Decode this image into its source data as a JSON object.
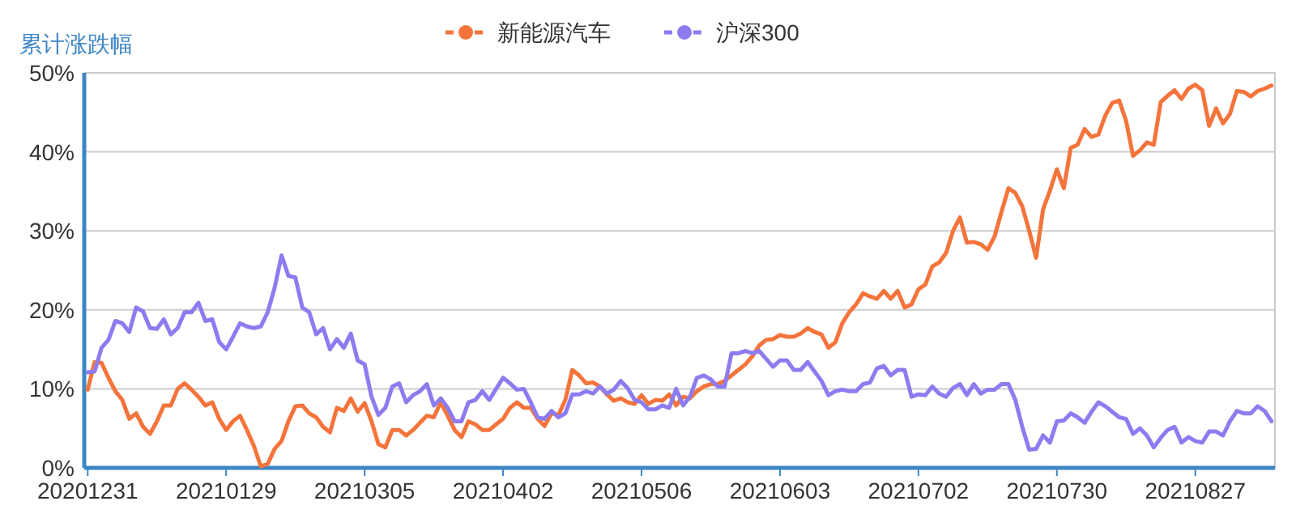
{
  "chart_data": {
    "type": "line",
    "ylabel": "累计涨跌幅",
    "legend": "top",
    "grid": "y",
    "ylim": [
      0,
      50
    ],
    "yticks": [
      {
        "value": 0,
        "label": "0%"
      },
      {
        "value": 10,
        "label": "10%"
      },
      {
        "value": 20,
        "label": "20%"
      },
      {
        "value": 30,
        "label": "30%"
      },
      {
        "value": 40,
        "label": "40%"
      },
      {
        "value": 50,
        "label": "50%"
      }
    ],
    "categories": [
      "20201231",
      null,
      null,
      null,
      null,
      null,
      null,
      null,
      null,
      null,
      null,
      null,
      null,
      null,
      null,
      null,
      null,
      null,
      null,
      null,
      "20210129",
      null,
      null,
      null,
      null,
      null,
      null,
      null,
      null,
      null,
      null,
      null,
      null,
      null,
      null,
      null,
      null,
      null,
      null,
      null,
      "20210305",
      null,
      null,
      null,
      null,
      null,
      null,
      null,
      null,
      null,
      null,
      null,
      null,
      null,
      null,
      null,
      null,
      null,
      null,
      null,
      "20210402",
      null,
      null,
      null,
      null,
      null,
      null,
      null,
      null,
      null,
      null,
      null,
      null,
      null,
      null,
      null,
      null,
      null,
      null,
      null,
      "20210506",
      null,
      null,
      null,
      null,
      null,
      null,
      null,
      null,
      null,
      null,
      null,
      null,
      null,
      null,
      null,
      null,
      null,
      null,
      null,
      "20210603",
      null,
      null,
      null,
      null,
      null,
      null,
      null,
      null,
      null,
      null,
      null,
      null,
      null,
      null,
      null,
      null,
      null,
      null,
      null,
      "20210702",
      null,
      null,
      null,
      null,
      null,
      null,
      null,
      null,
      null,
      null,
      null,
      null,
      null,
      null,
      null,
      null,
      null,
      null,
      null,
      "20210730",
      null,
      null,
      null,
      null,
      null,
      null,
      null,
      null,
      null,
      null,
      null,
      null,
      null,
      null,
      null,
      null,
      null,
      null,
      null,
      "20210827",
      null,
      null,
      null,
      null,
      null,
      null,
      null,
      null,
      null,
      null,
      null
    ],
    "series": [
      {
        "name": "新能源汽车",
        "color": "#f4743b",
        "values": [
          9.9,
          13.4,
          13.3,
          11.4,
          9.7,
          8.6,
          6.2,
          6.9,
          5.2,
          4.3,
          5.9,
          7.9,
          7.9,
          10,
          10.7,
          9.9,
          9,
          7.9,
          8.3,
          6.2,
          4.8,
          5.9,
          6.6,
          4.8,
          2.8,
          0.2,
          0.5,
          2.4,
          3.4,
          5.9,
          7.8,
          7.9,
          6.9,
          6.4,
          5.2,
          4.5,
          7.6,
          7.2,
          8.8,
          7.1,
          8.2,
          5.9,
          3,
          2.6,
          4.8,
          4.8,
          4.1,
          4.8,
          5.7,
          6.6,
          6.4,
          8.3,
          6.6,
          4.8,
          3.9,
          5.9,
          5.5,
          4.8,
          4.8,
          5.5,
          6.2,
          7.6,
          8.3,
          7.6,
          7.6,
          6.2,
          5.3,
          6.9,
          6.7,
          8.6,
          12.4,
          11.7,
          10.7,
          10.8,
          10.3,
          9.3,
          8.5,
          8.8,
          8.3,
          8.1,
          9.2,
          8.1,
          8.6,
          8.5,
          9.3,
          7.9,
          9,
          8.8,
          9.7,
          10.3,
          10.6,
          10.6,
          11,
          11.7,
          12.4,
          13.1,
          14.1,
          15.5,
          16.2,
          16.3,
          16.8,
          16.6,
          16.6,
          17,
          17.7,
          17.2,
          16.9,
          15.2,
          15.9,
          18.3,
          19.7,
          20.7,
          22.1,
          21.7,
          21.4,
          22.4,
          21.4,
          22.4,
          20.3,
          20.7,
          22.6,
          23.2,
          25.5,
          26,
          27.2,
          30,
          31.7,
          28.5,
          28.6,
          28.3,
          27.6,
          29.3,
          32.4,
          35.4,
          34.8,
          33.1,
          30,
          26.6,
          32.7,
          35.1,
          37.8,
          35.4,
          40.5,
          40.9,
          42.9,
          41.9,
          42.2,
          44.6,
          46.2,
          46.5,
          43.9,
          39.5,
          40.2,
          41.2,
          40.9,
          46.3,
          47.1,
          47.8,
          46.7,
          48,
          48.5,
          47.8,
          43.3,
          45.5,
          43.6,
          44.8,
          47.7,
          47.6,
          47,
          47.7,
          48,
          48.4
        ]
      },
      {
        "name": "沪深300",
        "color": "#8c7cf0",
        "values": [
          12.1,
          12.2,
          15.2,
          16.2,
          18.6,
          18.3,
          17.2,
          20.3,
          19.8,
          17.7,
          17.6,
          18.8,
          16.9,
          17.7,
          19.7,
          19.7,
          20.9,
          18.6,
          18.8,
          15.9,
          15,
          16.6,
          18.3,
          17.9,
          17.7,
          17.9,
          19.7,
          22.8,
          26.9,
          24.3,
          24.1,
          20.3,
          19.7,
          16.9,
          17.7,
          15,
          16.3,
          15.2,
          17,
          13.6,
          13.1,
          9,
          6.7,
          7.6,
          10.3,
          10.7,
          8.3,
          9.2,
          9.7,
          10.6,
          7.9,
          8.8,
          7.6,
          5.9,
          5.9,
          8.3,
          8.6,
          9.7,
          8.6,
          10,
          11.4,
          10.7,
          9.9,
          10,
          8.3,
          6.4,
          6.2,
          7.2,
          6.4,
          6.9,
          9.3,
          9.3,
          9.7,
          9.4,
          10.3,
          9.4,
          9.9,
          11,
          10.1,
          8.6,
          8.3,
          7.4,
          7.4,
          7.9,
          7.6,
          10,
          7.9,
          9,
          11.4,
          11.7,
          11.2,
          10.3,
          10.3,
          14.5,
          14.5,
          14.8,
          14.5,
          14.8,
          13.8,
          12.8,
          13.6,
          13.6,
          12.4,
          12.4,
          13.4,
          12.2,
          11,
          9.2,
          9.7,
          9.9,
          9.7,
          9.7,
          10.6,
          10.8,
          12.6,
          12.9,
          11.7,
          12.4,
          12.4,
          9,
          9.3,
          9.2,
          10.3,
          9.4,
          9,
          10.1,
          10.6,
          9.2,
          10.6,
          9.4,
          9.9,
          9.9,
          10.6,
          10.6,
          8.6,
          5.2,
          2.3,
          2.4,
          4.1,
          3.2,
          5.9,
          6,
          6.9,
          6.4,
          5.7,
          7.1,
          8.3,
          7.8,
          7.1,
          6.4,
          6.2,
          4.3,
          5,
          4.1,
          2.6,
          3.8,
          4.8,
          5.2,
          3.2,
          3.9,
          3.4,
          3.2,
          4.6,
          4.6,
          4.1,
          5.9,
          7.2,
          6.9,
          6.9,
          7.8,
          7.2,
          5.9
        ]
      }
    ]
  }
}
